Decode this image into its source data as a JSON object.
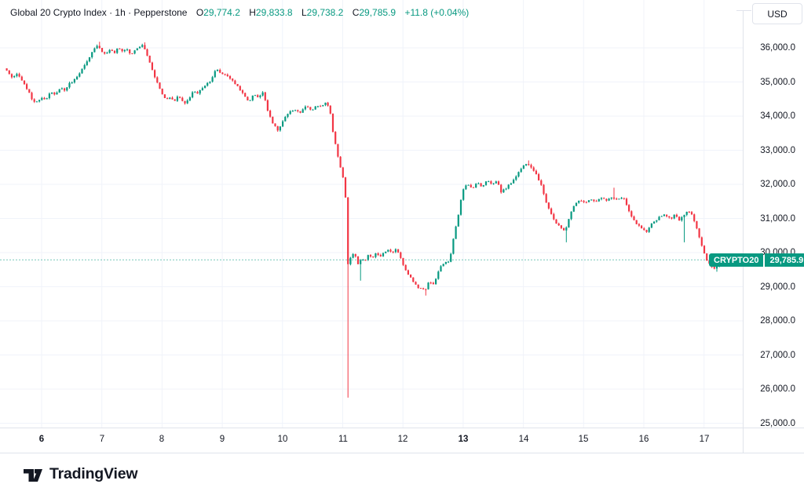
{
  "header": {
    "legend_title": "Global 20 Crypto Index · 1h · Pepperstone",
    "open_label": "O",
    "open": "29,774.2",
    "high_label": "H",
    "high": "29,833.8",
    "low_label": "L",
    "low": "29,738.2",
    "close_label": "C",
    "close": "29,785.9",
    "change": "+11.8 (+0.04%)"
  },
  "price_axis": {
    "currency_button": "USD",
    "tick_labels": [
      "36,000.0",
      "35,000.0",
      "34,000.0",
      "33,000.0",
      "32,000.0",
      "31,000.0",
      "30,000.0",
      "29,000.0",
      "28,000.0",
      "27,000.0",
      "26,000.0",
      "25,000.0"
    ]
  },
  "footer": {
    "brand": "TradingView"
  },
  "chart_data": {
    "type": "candlestick",
    "title": "Global 20 Crypto Index",
    "interval": "1h",
    "provider": "Pepperstone",
    "currency": "USD",
    "current_price": 29785.9,
    "current_price_display": "29,785.9",
    "current_price_symbol_label": "CRYPTO20",
    "colors": {
      "up": "#089981",
      "down": "#f23645",
      "grid": "#f0f3fa",
      "separator": "#e0e3eb",
      "axis_text": "#131722"
    },
    "y_axis": {
      "ticks": [
        36000,
        35000,
        34000,
        33000,
        32000,
        31000,
        30000,
        29000,
        28000,
        27000,
        26000,
        25000
      ],
      "range": [
        24900,
        36400
      ]
    },
    "x_axis": {
      "ticks": [
        6,
        7,
        8,
        9,
        10,
        11,
        12,
        13,
        14,
        15,
        16,
        17
      ],
      "bold_ticks": [
        6,
        13
      ],
      "unit": "day of month"
    },
    "path_day_price": [
      [
        5.41,
        35400
      ],
      [
        5.48,
        35250
      ],
      [
        5.54,
        35100
      ],
      [
        5.62,
        35250
      ],
      [
        5.7,
        35000
      ],
      [
        5.78,
        34800
      ],
      [
        5.86,
        34500
      ],
      [
        5.93,
        34380
      ],
      [
        6.01,
        34550
      ],
      [
        6.09,
        34500
      ],
      [
        6.17,
        34700
      ],
      [
        6.25,
        34600
      ],
      [
        6.33,
        34850
      ],
      [
        6.4,
        34750
      ],
      [
        6.48,
        34950
      ],
      [
        6.56,
        35050
      ],
      [
        6.64,
        35250
      ],
      [
        6.72,
        35450
      ],
      [
        6.8,
        35650
      ],
      [
        6.87,
        35900
      ],
      [
        6.95,
        36100
      ],
      [
        7.02,
        35900
      ],
      [
        7.08,
        35800
      ],
      [
        7.15,
        35950
      ],
      [
        7.23,
        35850
      ],
      [
        7.29,
        36000
      ],
      [
        7.37,
        35900
      ],
      [
        7.43,
        35980
      ],
      [
        7.5,
        35800
      ],
      [
        7.56,
        35900
      ],
      [
        7.63,
        36020
      ],
      [
        7.7,
        36080
      ],
      [
        7.76,
        35850
      ],
      [
        7.83,
        35500
      ],
      [
        7.89,
        35200
      ],
      [
        7.96,
        34900
      ],
      [
        8.02,
        34650
      ],
      [
        8.09,
        34480
      ],
      [
        8.15,
        34560
      ],
      [
        8.22,
        34420
      ],
      [
        8.28,
        34600
      ],
      [
        8.35,
        34450
      ],
      [
        8.41,
        34350
      ],
      [
        8.48,
        34550
      ],
      [
        8.54,
        34750
      ],
      [
        8.61,
        34650
      ],
      [
        8.67,
        34800
      ],
      [
        8.73,
        34900
      ],
      [
        8.83,
        35050
      ],
      [
        8.92,
        35380
      ],
      [
        9.0,
        35250
      ],
      [
        9.1,
        35200
      ],
      [
        9.18,
        35050
      ],
      [
        9.29,
        34850
      ],
      [
        9.38,
        34600
      ],
      [
        9.46,
        34420
      ],
      [
        9.55,
        34650
      ],
      [
        9.62,
        34550
      ],
      [
        9.7,
        34700
      ],
      [
        9.78,
        34150
      ],
      [
        9.87,
        33750
      ],
      [
        9.95,
        33570
      ],
      [
        10.04,
        33900
      ],
      [
        10.13,
        34100
      ],
      [
        10.22,
        34200
      ],
      [
        10.32,
        34100
      ],
      [
        10.41,
        34300
      ],
      [
        10.5,
        34150
      ],
      [
        10.59,
        34300
      ],
      [
        10.68,
        34280
      ],
      [
        10.75,
        34430
      ],
      [
        10.81,
        34150
      ],
      [
        10.86,
        33500
      ],
      [
        10.92,
        33000
      ],
      [
        10.97,
        32600
      ],
      [
        11.02,
        32250
      ],
      [
        11.06,
        31950
      ],
      [
        11.11,
        29600
      ],
      [
        11.16,
        29900
      ],
      [
        11.22,
        29980
      ],
      [
        11.28,
        29630
      ],
      [
        11.33,
        29850
      ],
      [
        11.39,
        29750
      ],
      [
        11.45,
        29950
      ],
      [
        11.51,
        29800
      ],
      [
        11.57,
        30000
      ],
      [
        11.63,
        29880
      ],
      [
        11.7,
        29980
      ],
      [
        11.77,
        30100
      ],
      [
        11.83,
        30000
      ],
      [
        11.9,
        30080
      ],
      [
        11.96,
        29980
      ],
      [
        12.02,
        29650
      ],
      [
        12.09,
        29400
      ],
      [
        12.17,
        29200
      ],
      [
        12.25,
        29000
      ],
      [
        12.32,
        28950
      ],
      [
        12.39,
        28900
      ],
      [
        12.45,
        29150
      ],
      [
        12.52,
        29050
      ],
      [
        12.59,
        29350
      ],
      [
        12.65,
        29600
      ],
      [
        12.72,
        29720
      ],
      [
        12.77,
        29690
      ],
      [
        12.82,
        30000
      ],
      [
        12.88,
        30600
      ],
      [
        12.95,
        31200
      ],
      [
        13.01,
        31850
      ],
      [
        13.09,
        32000
      ],
      [
        13.17,
        31880
      ],
      [
        13.25,
        32060
      ],
      [
        13.33,
        31920
      ],
      [
        13.42,
        32150
      ],
      [
        13.5,
        31980
      ],
      [
        13.58,
        32120
      ],
      [
        13.65,
        31780
      ],
      [
        13.74,
        31900
      ],
      [
        13.82,
        32050
      ],
      [
        13.92,
        32300
      ],
      [
        14.01,
        32520
      ],
      [
        14.08,
        32640
      ],
      [
        14.16,
        32500
      ],
      [
        14.24,
        32280
      ],
      [
        14.32,
        31950
      ],
      [
        14.4,
        31480
      ],
      [
        14.48,
        31150
      ],
      [
        14.55,
        30880
      ],
      [
        14.63,
        30740
      ],
      [
        14.71,
        30620
      ],
      [
        14.79,
        31080
      ],
      [
        14.87,
        31400
      ],
      [
        14.94,
        31540
      ],
      [
        15.04,
        31460
      ],
      [
        15.13,
        31580
      ],
      [
        15.22,
        31500
      ],
      [
        15.31,
        31600
      ],
      [
        15.4,
        31520
      ],
      [
        15.49,
        31620
      ],
      [
        15.58,
        31560
      ],
      [
        15.68,
        31620
      ],
      [
        15.75,
        31300
      ],
      [
        15.83,
        31000
      ],
      [
        15.91,
        30820
      ],
      [
        15.99,
        30700
      ],
      [
        16.07,
        30580
      ],
      [
        16.14,
        30820
      ],
      [
        16.22,
        30950
      ],
      [
        16.3,
        31080
      ],
      [
        16.38,
        31120
      ],
      [
        16.46,
        30980
      ],
      [
        16.53,
        31100
      ],
      [
        16.61,
        30960
      ],
      [
        16.69,
        31120
      ],
      [
        16.76,
        31240
      ],
      [
        16.82,
        31120
      ],
      [
        16.89,
        30780
      ],
      [
        16.95,
        30380
      ],
      [
        17.02,
        29980
      ],
      [
        17.08,
        29720
      ],
      [
        17.15,
        29580
      ],
      [
        17.2,
        29520
      ],
      [
        17.27,
        29700
      ],
      [
        17.33,
        29800
      ],
      [
        17.4,
        29790
      ],
      [
        17.45,
        29786
      ]
    ],
    "special_wicks": [
      {
        "t": 6.95,
        "high": 36180
      },
      {
        "t": 7.7,
        "high": 36160
      },
      {
        "t": 11.08,
        "low": 25750
      },
      {
        "t": 11.28,
        "low": 29180
      },
      {
        "t": 12.37,
        "low": 28740
      },
      {
        "t": 14.06,
        "high": 32700
      },
      {
        "t": 14.7,
        "low": 30300
      },
      {
        "t": 15.5,
        "high": 31900
      },
      {
        "t": 16.64,
        "low": 30300
      },
      {
        "t": 17.19,
        "low": 29440
      }
    ]
  }
}
